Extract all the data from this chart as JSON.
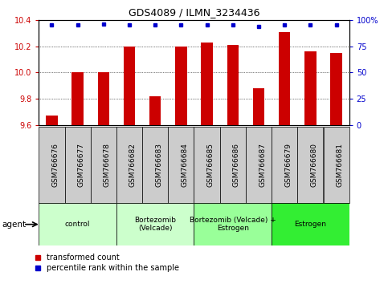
{
  "title": "GDS4089 / ILMN_3234436",
  "samples": [
    "GSM766676",
    "GSM766677",
    "GSM766678",
    "GSM766682",
    "GSM766683",
    "GSM766684",
    "GSM766685",
    "GSM766686",
    "GSM766687",
    "GSM766679",
    "GSM766680",
    "GSM766681"
  ],
  "transformed_counts": [
    9.67,
    10.0,
    10.0,
    10.2,
    9.82,
    10.2,
    10.23,
    10.21,
    9.88,
    10.31,
    10.16,
    10.15
  ],
  "percentile_ranks": [
    95,
    95,
    96,
    95,
    95,
    95,
    95,
    95,
    94,
    95,
    95,
    95
  ],
  "ylim_left": [
    9.6,
    10.4
  ],
  "ylim_right": [
    0,
    100
  ],
  "yticks_left": [
    9.6,
    9.8,
    10.0,
    10.2,
    10.4
  ],
  "yticks_right": [
    0,
    25,
    50,
    75,
    100
  ],
  "groups": [
    {
      "label": "control",
      "start": 0,
      "end": 3,
      "color": "#ccffcc"
    },
    {
      "label": "Bortezomib\n(Velcade)",
      "start": 3,
      "end": 6,
      "color": "#ccffcc"
    },
    {
      "label": "Bortezomib (Velcade) +\nEstrogen",
      "start": 6,
      "end": 9,
      "color": "#99ff99"
    },
    {
      "label": "Estrogen",
      "start": 9,
      "end": 12,
      "color": "#33ee33"
    }
  ],
  "bar_color": "#cc0000",
  "dot_color": "#0000cc",
  "bar_width": 0.45,
  "xlabel_area_color": "#cccccc",
  "agent_label": "agent",
  "legend_red_label": "transformed count",
  "legend_blue_label": "percentile rank within the sample"
}
